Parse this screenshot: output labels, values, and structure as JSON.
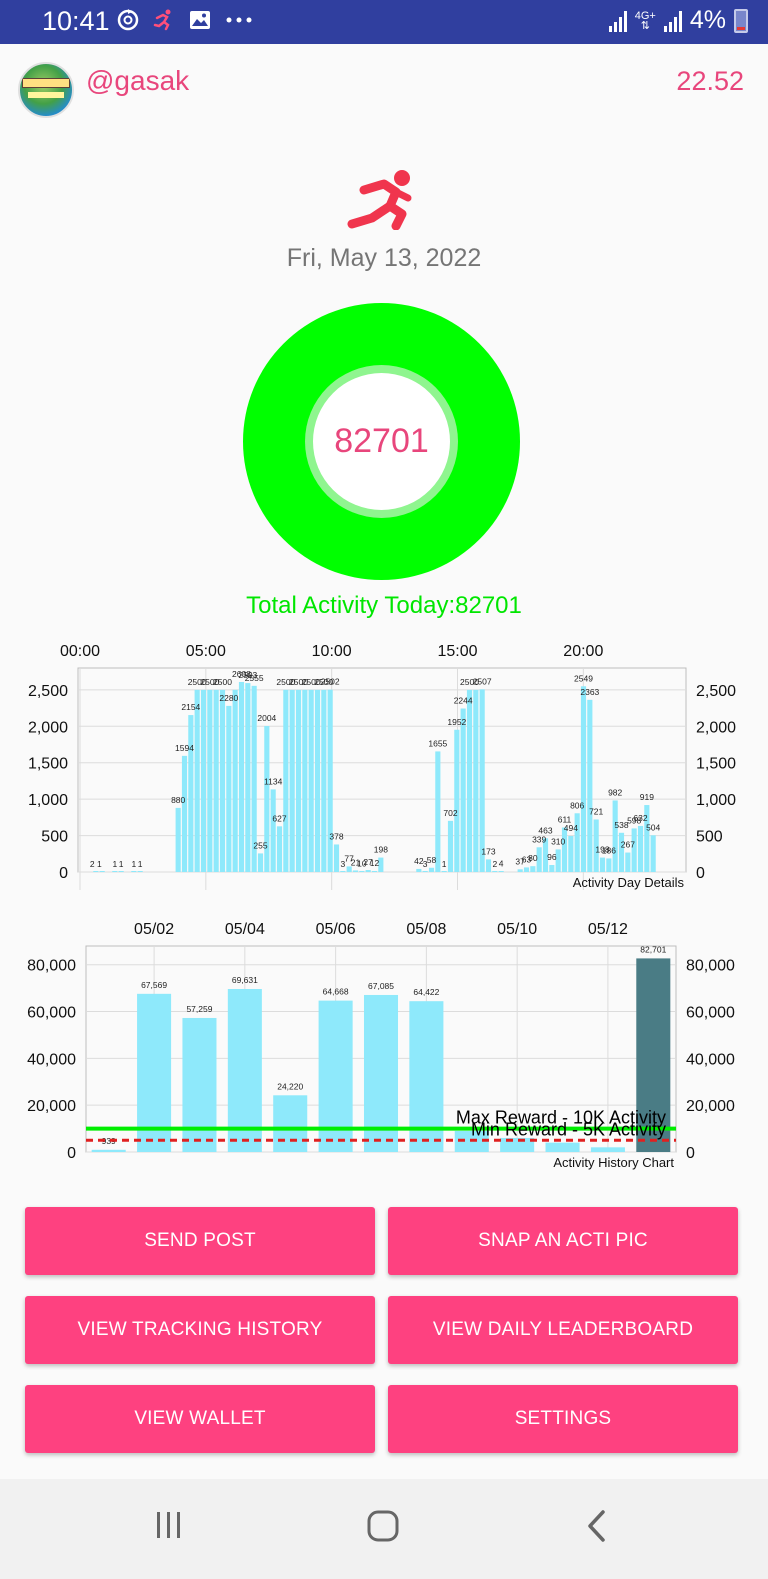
{
  "status_bar": {
    "time": "10:41",
    "network": "4G+",
    "battery": "4%",
    "icons": [
      "sync-icon",
      "runner-notification-icon",
      "image-icon",
      "more-dots-icon",
      "signal-icon",
      "battery-icon"
    ]
  },
  "profile": {
    "username": "@gasak",
    "balance": "22.52"
  },
  "date": "Fri, May 13, 2022",
  "ring": {
    "value": "82701",
    "color": "#00ff00"
  },
  "total_label": "Total Activity Today:82701",
  "colors": {
    "accent": "#e8467c",
    "button": "#fe4180",
    "bar": "#8ee9fb",
    "bar_highlight": "#4a7c85",
    "max_line": "#00ee00",
    "min_line": "#e02020"
  },
  "chart_data": [
    {
      "type": "bar",
      "title": "Activity Day Details",
      "x_tick_labels": [
        "00:00",
        "05:00",
        "10:00",
        "15:00",
        "20:00"
      ],
      "ylim": [
        0,
        2800
      ],
      "y_ticks": [
        "0",
        "500",
        "1,000",
        "1,500",
        "2,000",
        "2,500"
      ],
      "grid": true,
      "slots_per_day": 96,
      "bars": [
        {
          "slot": 2,
          "value": 2
        },
        {
          "slot": 3,
          "value": 1
        },
        {
          "slot": 5,
          "value": 1
        },
        {
          "slot": 6,
          "value": 1
        },
        {
          "slot": 8,
          "value": 1
        },
        {
          "slot": 9,
          "value": 1
        },
        {
          "slot": 15,
          "value": 880
        },
        {
          "slot": 16,
          "value": 1594
        },
        {
          "slot": 17,
          "value": 2154
        },
        {
          "slot": 18,
          "value": 2500
        },
        {
          "slot": 19,
          "value": 2500
        },
        {
          "slot": 20,
          "value": 2500
        },
        {
          "slot": 21,
          "value": 2500
        },
        {
          "slot": 22,
          "value": 2500
        },
        {
          "slot": 23,
          "value": 2280
        },
        {
          "slot": 24,
          "value": 2500
        },
        {
          "slot": 25,
          "value": 2608
        },
        {
          "slot": 26,
          "value": 2593
        },
        {
          "slot": 27,
          "value": 2555
        },
        {
          "slot": 28,
          "value": 255
        },
        {
          "slot": 29,
          "value": 2004
        },
        {
          "slot": 30,
          "value": 1134
        },
        {
          "slot": 31,
          "value": 627
        },
        {
          "slot": 32,
          "value": 2500
        },
        {
          "slot": 33,
          "value": 2500
        },
        {
          "slot": 34,
          "value": 2500
        },
        {
          "slot": 35,
          "value": 2500
        },
        {
          "slot": 36,
          "value": 2500
        },
        {
          "slot": 37,
          "value": 2500
        },
        {
          "slot": 38,
          "value": 2500
        },
        {
          "slot": 39,
          "value": 2502
        },
        {
          "slot": 40,
          "value": 378
        },
        {
          "slot": 41,
          "value": 3
        },
        {
          "slot": 42,
          "value": 77
        },
        {
          "slot": 43,
          "value": 21
        },
        {
          "slot": 44,
          "value": 10
        },
        {
          "slot": 45,
          "value": 27
        },
        {
          "slot": 46,
          "value": 12
        },
        {
          "slot": 47,
          "value": 198
        },
        {
          "slot": 53,
          "value": 42
        },
        {
          "slot": 54,
          "value": 3
        },
        {
          "slot": 55,
          "value": 58
        },
        {
          "slot": 56,
          "value": 1655
        },
        {
          "slot": 57,
          "value": 1
        },
        {
          "slot": 58,
          "value": 702
        },
        {
          "slot": 59,
          "value": 1952
        },
        {
          "slot": 60,
          "value": 2244
        },
        {
          "slot": 61,
          "value": 2500
        },
        {
          "slot": 62,
          "value": 2500
        },
        {
          "slot": 63,
          "value": 2507
        },
        {
          "slot": 64,
          "value": 173
        },
        {
          "slot": 65,
          "value": 2
        },
        {
          "slot": 66,
          "value": 4
        },
        {
          "slot": 69,
          "value": 37
        },
        {
          "slot": 70,
          "value": 63
        },
        {
          "slot": 71,
          "value": 80
        },
        {
          "slot": 72,
          "value": 339
        },
        {
          "slot": 73,
          "value": 463
        },
        {
          "slot": 74,
          "value": 96
        },
        {
          "slot": 75,
          "value": 310
        },
        {
          "slot": 76,
          "value": 611
        },
        {
          "slot": 77,
          "value": 494
        },
        {
          "slot": 78,
          "value": 806
        },
        {
          "slot": 79,
          "value": 2549
        },
        {
          "slot": 80,
          "value": 2363
        },
        {
          "slot": 81,
          "value": 721
        },
        {
          "slot": 82,
          "value": 198
        },
        {
          "slot": 83,
          "value": 186
        },
        {
          "slot": 84,
          "value": 982
        },
        {
          "slot": 85,
          "value": 538
        },
        {
          "slot": 86,
          "value": 267
        },
        {
          "slot": 87,
          "value": 598
        },
        {
          "slot": 88,
          "value": 632
        },
        {
          "slot": 89,
          "value": 919
        },
        {
          "slot": 90,
          "value": 504
        }
      ],
      "labels": [
        {
          "slot": 2,
          "text": "2 1"
        },
        {
          "slot": 5,
          "text": "1"
        },
        {
          "slot": 6,
          "text": "1"
        },
        {
          "slot": 8,
          "text": "1"
        },
        {
          "slot": 9,
          "text": "1"
        },
        {
          "slot": 15,
          "text": "880"
        },
        {
          "slot": 16,
          "text": "1594"
        },
        {
          "slot": 17,
          "text": "2154"
        },
        {
          "slot": 18,
          "text": "2500"
        },
        {
          "slot": 20,
          "text": "2500"
        },
        {
          "slot": 22,
          "text": "2500"
        },
        {
          "slot": 23,
          "text": "2280"
        },
        {
          "slot": 25,
          "text": "2608"
        },
        {
          "slot": 26,
          "text": "2593"
        },
        {
          "slot": 27,
          "text": "2555"
        },
        {
          "slot": 28,
          "text": "255"
        },
        {
          "slot": 29,
          "text": "2004"
        },
        {
          "slot": 30,
          "text": "1134"
        },
        {
          "slot": 31,
          "text": "627"
        },
        {
          "slot": 32,
          "text": "2500"
        },
        {
          "slot": 34,
          "text": "2500"
        },
        {
          "slot": 36,
          "text": "2500"
        },
        {
          "slot": 38,
          "text": "2500"
        },
        {
          "slot": 39,
          "text": "2502"
        },
        {
          "slot": 40,
          "text": "378"
        },
        {
          "slot": 41,
          "text": "3"
        },
        {
          "slot": 42,
          "text": "77"
        },
        {
          "slot": 43,
          "text": "21"
        },
        {
          "slot": 44,
          "text": "10"
        },
        {
          "slot": 45,
          "text": "27"
        },
        {
          "slot": 46,
          "text": "12"
        },
        {
          "slot": 47,
          "text": "198"
        },
        {
          "slot": 53,
          "text": "42"
        },
        {
          "slot": 54,
          "text": "3"
        },
        {
          "slot": 55,
          "text": "58"
        },
        {
          "slot": 56,
          "text": "1655"
        },
        {
          "slot": 57,
          "text": "1"
        },
        {
          "slot": 58,
          "text": "702"
        },
        {
          "slot": 59,
          "text": "1952"
        },
        {
          "slot": 60,
          "text": "2244"
        },
        {
          "slot": 61,
          "text": "2500"
        },
        {
          "slot": 63,
          "text": "2507"
        },
        {
          "slot": 64,
          "text": "173"
        },
        {
          "slot": 65,
          "text": "2"
        },
        {
          "slot": 66,
          "text": "4"
        },
        {
          "slot": 69,
          "text": "37"
        },
        {
          "slot": 70,
          "text": "63"
        },
        {
          "slot": 71,
          "text": "80"
        },
        {
          "slot": 72,
          "text": "339"
        },
        {
          "slot": 73,
          "text": "463"
        },
        {
          "slot": 74,
          "text": "96"
        },
        {
          "slot": 75,
          "text": "310"
        },
        {
          "slot": 76,
          "text": "611"
        },
        {
          "slot": 77,
          "text": "494"
        },
        {
          "slot": 78,
          "text": "806"
        },
        {
          "slot": 79,
          "text": "2549"
        },
        {
          "slot": 80,
          "text": "2363"
        },
        {
          "slot": 81,
          "text": "721"
        },
        {
          "slot": 82,
          "text": "198"
        },
        {
          "slot": 83,
          "text": "186"
        },
        {
          "slot": 84,
          "text": "982"
        },
        {
          "slot": 85,
          "text": "538"
        },
        {
          "slot": 86,
          "text": "267"
        },
        {
          "slot": 87,
          "text": "598"
        },
        {
          "slot": 88,
          "text": "632"
        },
        {
          "slot": 89,
          "text": "919"
        },
        {
          "slot": 90,
          "text": "504"
        }
      ]
    },
    {
      "type": "bar",
      "title": "Activity History Chart",
      "categories": [
        "05/01",
        "05/02",
        "05/03",
        "05/04",
        "05/05",
        "05/06",
        "05/07",
        "05/08",
        "05/09",
        "05/10",
        "05/11",
        "05/12",
        "05/13"
      ],
      "x_tick_labels": [
        "05/02",
        "05/04",
        "05/06",
        "05/08",
        "05/10",
        "05/12"
      ],
      "values": [
        939,
        67569,
        57259,
        69631,
        24220,
        64668,
        67085,
        64422,
        9000,
        6000,
        4000,
        2000,
        82701
      ],
      "value_labels": [
        "939",
        "67,569",
        "57,259",
        "69,631",
        "24,220",
        "64,668",
        "67,085",
        "64,422",
        "",
        "",
        "",
        "",
        "82,701"
      ],
      "highlight_index": 12,
      "ylim": [
        0,
        88000
      ],
      "y_ticks": [
        "0",
        "20,000",
        "40,000",
        "60,000",
        "80,000"
      ],
      "grid": true,
      "limit_lines": [
        {
          "label": "Max Reward - 10K Activity",
          "value": 10000,
          "style": "solid"
        },
        {
          "label": "Min Reward - 5K Activity",
          "value": 5000,
          "style": "dashed"
        }
      ]
    }
  ],
  "buttons": {
    "send_post": "SEND POST",
    "snap_pic": "SNAP AN ACTI PIC",
    "tracking_history": "VIEW TRACKING HISTORY",
    "daily_leaderboard": "VIEW DAILY LEADERBOARD",
    "wallet": "VIEW WALLET",
    "settings": "SETTINGS"
  },
  "nav_bar": {
    "icons": [
      "recent-apps-icon",
      "home-icon",
      "back-icon"
    ]
  }
}
